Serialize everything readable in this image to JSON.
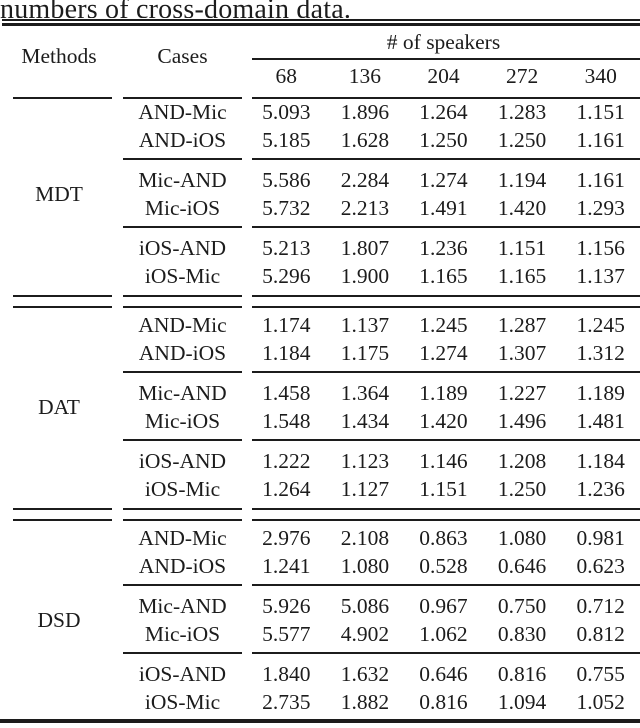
{
  "caption": "numbers of cross-domain data.",
  "table": {
    "headers": {
      "methods": "Methods",
      "cases": "Cases",
      "speakers_group": "# of speakers",
      "speaker_counts": [
        "68",
        "136",
        "204",
        "272",
        "340"
      ]
    },
    "groups": [
      {
        "method": "MDT",
        "rows": [
          {
            "case": "AND-Mic",
            "values": [
              "5.093",
              "1.896",
              "1.264",
              "1.283",
              "1.151"
            ]
          },
          {
            "case": "AND-iOS",
            "values": [
              "5.185",
              "1.628",
              "1.250",
              "1.250",
              "1.161"
            ]
          },
          {
            "case": "Mic-AND",
            "values": [
              "5.586",
              "2.284",
              "1.274",
              "1.194",
              "1.161"
            ]
          },
          {
            "case": "Mic-iOS",
            "values": [
              "5.732",
              "2.213",
              "1.491",
              "1.420",
              "1.293"
            ]
          },
          {
            "case": "iOS-AND",
            "values": [
              "5.213",
              "1.807",
              "1.236",
              "1.151",
              "1.156"
            ]
          },
          {
            "case": "iOS-Mic",
            "values": [
              "5.296",
              "1.900",
              "1.165",
              "1.165",
              "1.137"
            ]
          }
        ]
      },
      {
        "method": "DAT",
        "rows": [
          {
            "case": "AND-Mic",
            "values": [
              "1.174",
              "1.137",
              "1.245",
              "1.287",
              "1.245"
            ]
          },
          {
            "case": "AND-iOS",
            "values": [
              "1.184",
              "1.175",
              "1.274",
              "1.307",
              "1.312"
            ]
          },
          {
            "case": "Mic-AND",
            "values": [
              "1.458",
              "1.364",
              "1.189",
              "1.227",
              "1.189"
            ]
          },
          {
            "case": "Mic-iOS",
            "values": [
              "1.548",
              "1.434",
              "1.420",
              "1.496",
              "1.481"
            ]
          },
          {
            "case": "iOS-AND",
            "values": [
              "1.222",
              "1.123",
              "1.146",
              "1.208",
              "1.184"
            ]
          },
          {
            "case": "iOS-Mic",
            "values": [
              "1.264",
              "1.127",
              "1.151",
              "1.250",
              "1.236"
            ]
          }
        ]
      },
      {
        "method": "DSD",
        "rows": [
          {
            "case": "AND-Mic",
            "values": [
              "2.976",
              "2.108",
              "0.863",
              "1.080",
              "0.981"
            ]
          },
          {
            "case": "AND-iOS",
            "values": [
              "1.241",
              "1.080",
              "0.528",
              "0.646",
              "0.623"
            ]
          },
          {
            "case": "Mic-AND",
            "values": [
              "5.926",
              "5.086",
              "0.967",
              "0.750",
              "0.712"
            ]
          },
          {
            "case": "Mic-iOS",
            "values": [
              "5.577",
              "4.902",
              "1.062",
              "0.830",
              "0.812"
            ]
          },
          {
            "case": "iOS-AND",
            "values": [
              "1.840",
              "1.632",
              "0.646",
              "0.816",
              "0.755"
            ]
          },
          {
            "case": "iOS-Mic",
            "values": [
              "2.735",
              "1.882",
              "0.816",
              "1.094",
              "1.052"
            ]
          }
        ]
      }
    ]
  }
}
